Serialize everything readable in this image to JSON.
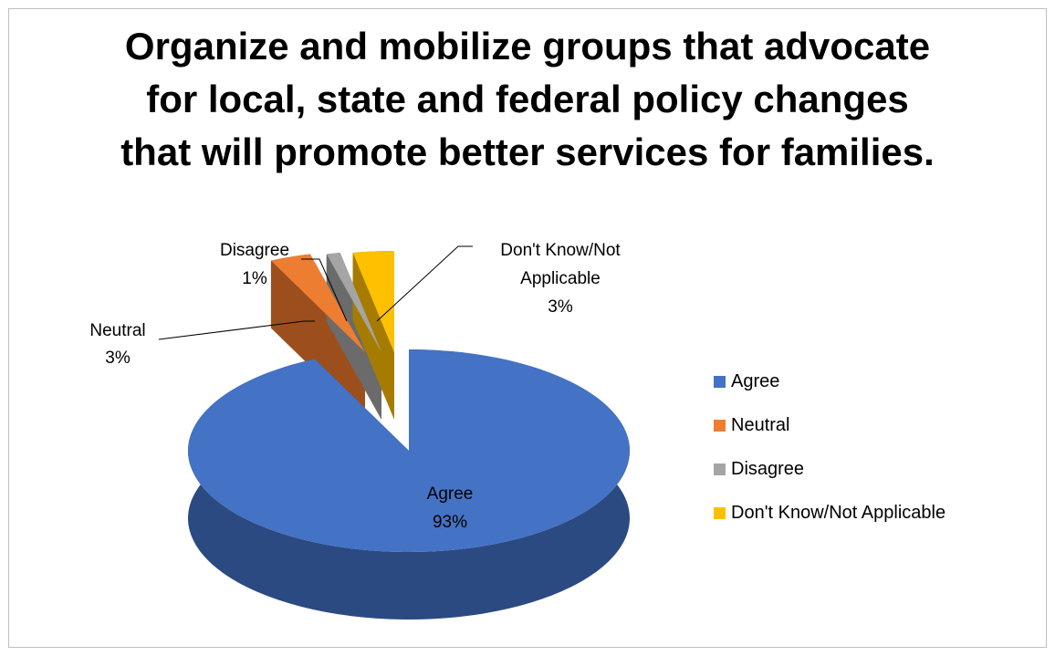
{
  "chart_data": {
    "type": "pie",
    "title_lines": [
      "Organize and mobilize groups that advocate",
      "for local, state and federal policy changes",
      "that will promote better services for families."
    ],
    "categories": [
      "Agree",
      "Neutral",
      "Disagree",
      "Don't Know/Not Applicable"
    ],
    "values": [
      93,
      3,
      1,
      3
    ],
    "value_labels": [
      "93%",
      "3%",
      "1%",
      "3%"
    ],
    "colors": [
      "#4472C4",
      "#ED7D31",
      "#A5A5A5",
      "#FFC000"
    ],
    "side_colors": [
      "#2B4A82",
      "#9C4F1C",
      "#6B6B6B",
      "#A67C00"
    ],
    "legend_position": "right",
    "exploded": [
      "Neutral",
      "Disagree",
      "Don't Know/Not Applicable"
    ],
    "style": "3d"
  }
}
